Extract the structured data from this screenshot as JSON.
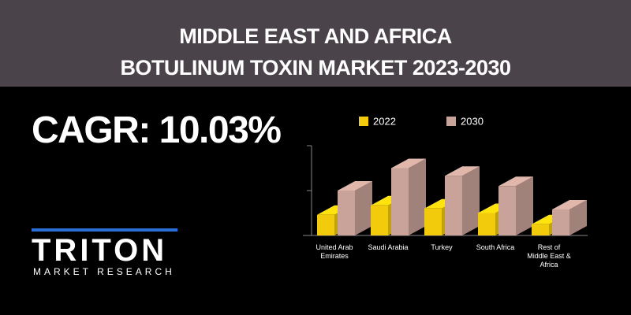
{
  "chart_data": {
    "type": "bar3d",
    "title": "MIDDLE EAST AND AFRICA BOTULINUM TOXIN MARKET 2023-2030",
    "categories": [
      "United Arab Emirates",
      "Saudi Arabia",
      "Turkey",
      "South Africa",
      "Rest of Middle East & Africa"
    ],
    "series": [
      {
        "name": "2022",
        "color": "#f2cb0c",
        "values": [
          0.46,
          0.67,
          0.6,
          0.5,
          0.25
        ]
      },
      {
        "name": "2030",
        "color": "#c9a39a",
        "values": [
          1.0,
          1.5,
          1.33,
          1.1,
          0.58
        ]
      }
    ],
    "ylim": [
      0,
      2
    ],
    "yticks": [
      0,
      1,
      2
    ]
  },
  "cagr": "CAGR: 10.03%",
  "logo": {
    "name": "TRITON",
    "tagline": "MARKET RESEARCH"
  }
}
